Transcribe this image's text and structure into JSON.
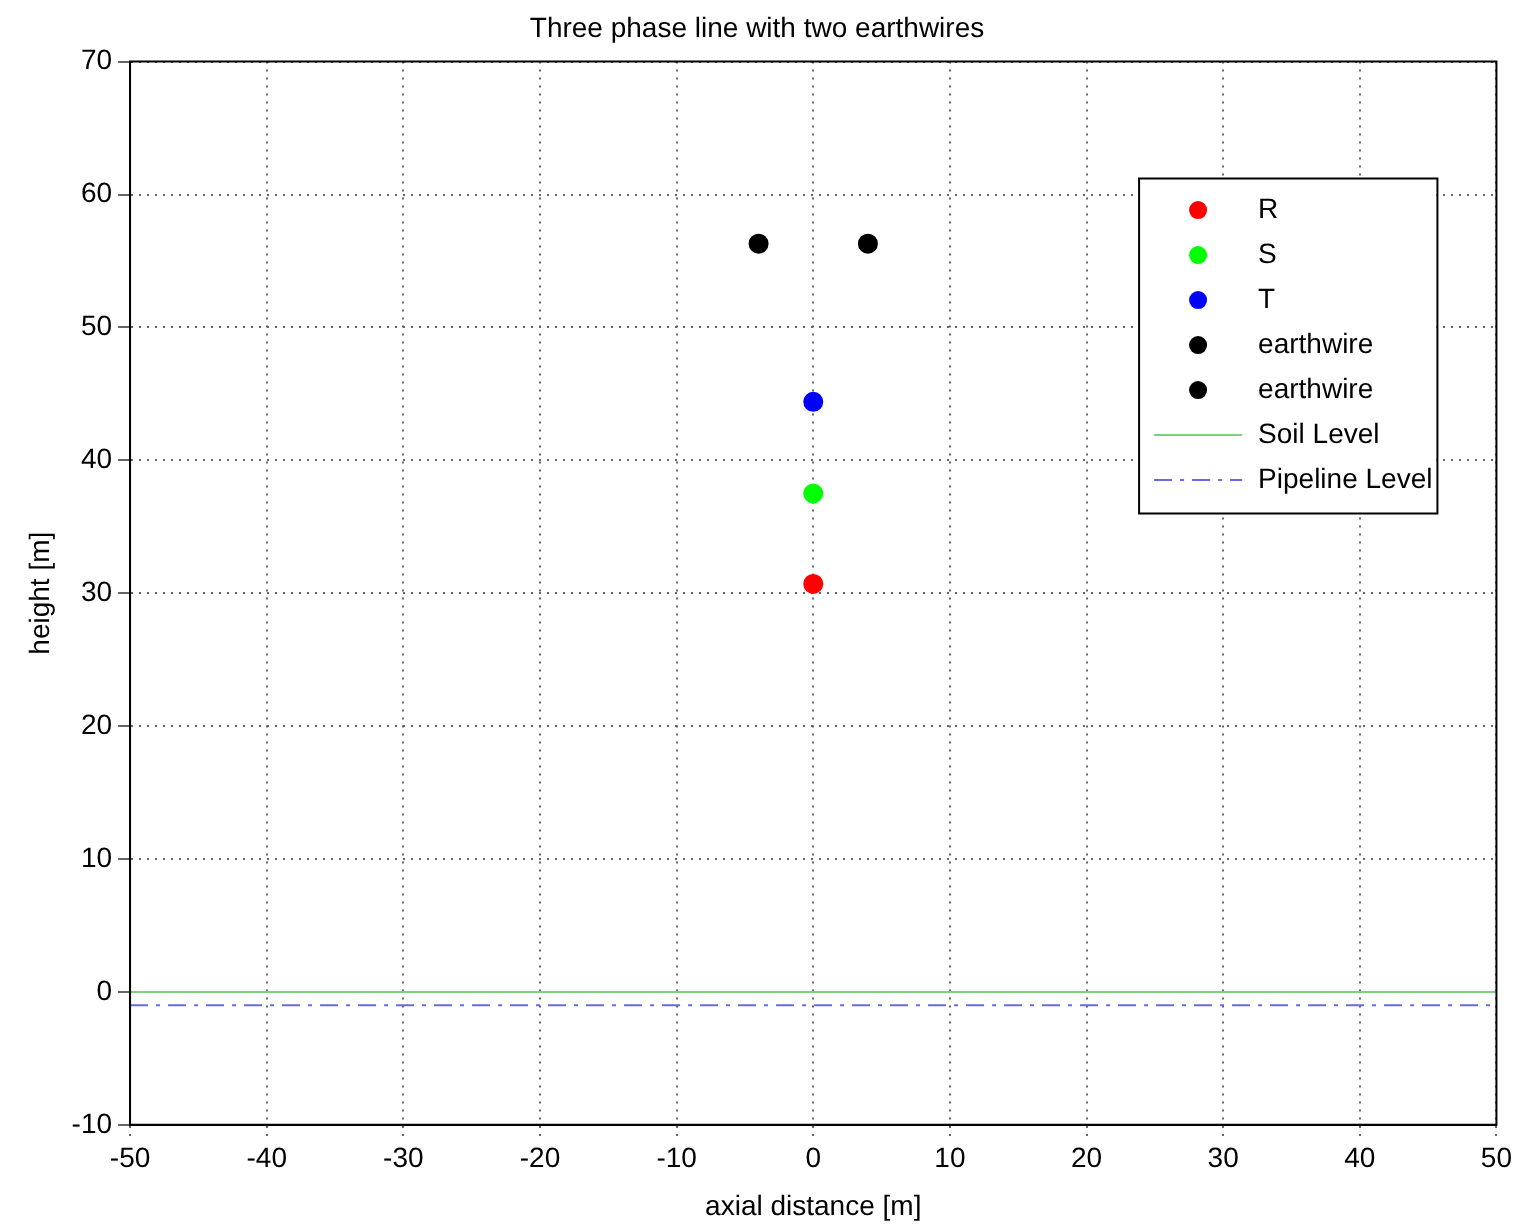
{
  "chart_data": {
    "type": "scatter",
    "title": "Three phase line with two earthwires",
    "xlabel": "axial distance [m]",
    "ylabel": "height [m]",
    "xlim": [
      -50,
      50
    ],
    "xticks": [
      -50,
      -40,
      -30,
      -20,
      -10,
      0,
      10,
      20,
      30,
      40,
      50
    ],
    "ylim": [
      -10,
      70
    ],
    "yticks": [
      -10,
      0,
      10,
      20,
      30,
      40,
      50,
      60,
      70
    ],
    "grid": true,
    "legend": "top right",
    "series": [
      {
        "name": "R",
        "color": "#ff0000",
        "marker": "circle",
        "x": [
          0
        ],
        "values": [
          30.7
        ]
      },
      {
        "name": "S",
        "color": "#00ff00",
        "marker": "circle",
        "x": [
          0
        ],
        "values": [
          37.5
        ]
      },
      {
        "name": "T",
        "color": "#0000ff",
        "marker": "circle",
        "x": [
          0
        ],
        "values": [
          44.4
        ]
      },
      {
        "name": "earthwire",
        "color": "#000000",
        "marker": "circle",
        "x": [
          -4
        ],
        "values": [
          56.3
        ]
      },
      {
        "name": "earthwire",
        "color": "#000000",
        "marker": "circle",
        "x": [
          4
        ],
        "values": [
          56.3
        ]
      },
      {
        "name": "Soil Level",
        "type": "line",
        "color": "#80d080",
        "marker": "none",
        "line_style": "solid",
        "x": [
          -50,
          50
        ],
        "values": [
          0,
          0
        ]
      },
      {
        "name": "Pipeline Level",
        "type": "line",
        "color": "#6a6ae0",
        "marker": "none",
        "line_style": "dashed",
        "x": [
          -50,
          50
        ],
        "values": [
          -1,
          -1
        ]
      }
    ]
  }
}
